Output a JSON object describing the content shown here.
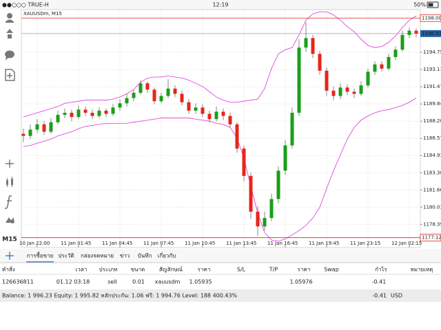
{
  "status_bar": {
    "carrier": "●●○○○ TRUE-H",
    "time": "12:19",
    "battery": "50%"
  },
  "chart_data": {
    "type": "candlestick",
    "title": "XAUUSDm, M15",
    "timeframe": "M15",
    "categories": [
      null,
      null,
      "10 Jan 22:00",
      null,
      null,
      null,
      null,
      null,
      "11 Jan 01:45",
      null,
      null,
      null,
      null,
      null,
      "11 Jan 04:45",
      null,
      null,
      null,
      null,
      null,
      "11 Jan 07:45",
      null,
      null,
      null,
      null,
      null,
      "11 Jan 10:45",
      null,
      null,
      null,
      null,
      null,
      "11 Jan 13:45",
      null,
      null,
      null,
      null,
      null,
      "11 Jan 16:45",
      null,
      null,
      null,
      null,
      null,
      "11 Jan 19:45",
      null,
      null,
      null,
      null,
      null,
      "11 Jan 23:15",
      null,
      null,
      null,
      null,
      null,
      "12 Jan 02:15",
      null
    ],
    "open": [
      1187.0,
      1186.8,
      1187.4,
      1187.9,
      1187.2,
      1188.1,
      1188.8,
      1189.0,
      1188.6,
      1189.3,
      1189.0,
      1188.7,
      1189.2,
      1188.9,
      1189.5,
      1189.9,
      1190.4,
      1190.9,
      1191.8,
      1191.2,
      1190.1,
      1190.6,
      1191.3,
      1190.8,
      1190.0,
      1189.2,
      1189.5,
      1188.9,
      1188.4,
      1189.1,
      1188.7,
      1187.9,
      1185.6,
      1183.0,
      1179.6,
      1178.2,
      1179.0,
      1180.8,
      1183.5,
      1185.9,
      1189.0,
      1195.2,
      1196.1,
      1194.6,
      1193.0,
      1191.1,
      1190.6,
      1191.4,
      1191.0,
      1190.8,
      1191.6,
      1192.9,
      1193.6,
      1193.2,
      1194.3,
      1195.0,
      1196.4,
      1196.8
    ],
    "high": [
      1187.5,
      1187.9,
      1188.4,
      1188.2,
      1188.5,
      1189.2,
      1189.4,
      1189.3,
      1189.7,
      1189.6,
      1189.3,
      1189.5,
      1189.4,
      1189.8,
      1190.3,
      1190.8,
      1191.2,
      1192.1,
      1192.0,
      1191.4,
      1190.9,
      1192.2,
      1191.6,
      1191.1,
      1190.3,
      1189.9,
      1189.8,
      1189.2,
      1189.6,
      1189.4,
      1189.0,
      1188.1,
      1185.9,
      1183.3,
      1180.1,
      1179.6,
      1181.3,
      1183.9,
      1186.4,
      1189.5,
      1196.0,
      1197.6,
      1196.4,
      1194.9,
      1193.3,
      1191.5,
      1191.8,
      1191.7,
      1191.3,
      1192.0,
      1193.2,
      1193.9,
      1193.9,
      1194.6,
      1195.3,
      1196.8,
      1197.1,
      1197.0
    ],
    "low": [
      1186.2,
      1186.5,
      1187.1,
      1186.9,
      1187.0,
      1187.9,
      1188.5,
      1188.2,
      1188.4,
      1188.7,
      1188.4,
      1188.5,
      1188.6,
      1188.7,
      1189.2,
      1189.6,
      1190.1,
      1190.7,
      1190.9,
      1189.8,
      1189.9,
      1190.4,
      1190.5,
      1189.7,
      1188.9,
      1188.9,
      1188.6,
      1188.1,
      1188.2,
      1188.3,
      1187.6,
      1185.2,
      1182.5,
      1178.9,
      1177.3,
      1177.8,
      1178.7,
      1180.4,
      1183.1,
      1185.6,
      1188.7,
      1194.8,
      1194.2,
      1192.6,
      1190.6,
      1190.2,
      1190.3,
      1190.7,
      1190.4,
      1190.6,
      1191.4,
      1192.6,
      1192.9,
      1193.0,
      1194.0,
      1194.8,
      1196.1,
      1196.2
    ],
    "close": [
      1186.8,
      1187.4,
      1187.9,
      1187.2,
      1188.1,
      1188.8,
      1189.0,
      1188.6,
      1189.3,
      1189.0,
      1188.7,
      1189.2,
      1188.9,
      1189.5,
      1189.9,
      1190.4,
      1190.9,
      1191.8,
      1191.2,
      1190.1,
      1190.6,
      1191.3,
      1190.8,
      1190.0,
      1189.2,
      1189.5,
      1188.9,
      1188.4,
      1189.1,
      1188.7,
      1187.9,
      1185.6,
      1183.0,
      1179.6,
      1178.2,
      1179.0,
      1180.8,
      1183.5,
      1185.9,
      1189.0,
      1195.2,
      1196.1,
      1194.6,
      1193.0,
      1191.1,
      1190.6,
      1191.4,
      1191.0,
      1190.8,
      1191.6,
      1192.9,
      1193.6,
      1193.2,
      1194.3,
      1195.0,
      1196.4,
      1196.8,
      1196.53
    ],
    "up_color": "#1a9e1a",
    "down_color": "#e8251a",
    "bands": {
      "color": "#d633d6",
      "upper": [
        1188.6,
        1188.8,
        1189.0,
        1189.2,
        1189.4,
        1189.6,
        1189.9,
        1190.0,
        1190.1,
        1190.2,
        1190.2,
        1190.2,
        1190.2,
        1190.3,
        1190.5,
        1190.8,
        1191.2,
        1191.9,
        1192.3,
        1192.4,
        1192.4,
        1192.5,
        1192.4,
        1192.3,
        1192.1,
        1191.8,
        1191.5,
        1191.0,
        1190.5,
        1190.2,
        1190.0,
        1190.0,
        1190.1,
        1190.2,
        1190.3,
        1191.3,
        1193.2,
        1194.6,
        1195.0,
        1195.2,
        1196.4,
        1197.8,
        1198.4,
        1198.6,
        1198.6,
        1198.3,
        1197.8,
        1197.2,
        1196.7,
        1196.0,
        1195.4,
        1195.2,
        1195.3,
        1195.7,
        1196.3,
        1197.1,
        1197.8,
        1198.2
      ],
      "lower": [
        1185.8,
        1185.9,
        1186.1,
        1186.3,
        1186.5,
        1186.8,
        1187.0,
        1187.2,
        1187.5,
        1187.7,
        1187.8,
        1187.9,
        1188.0,
        1188.0,
        1188.0,
        1188.0,
        1188.1,
        1188.2,
        1188.3,
        1188.4,
        1188.5,
        1188.5,
        1188.5,
        1188.5,
        1188.5,
        1188.4,
        1188.3,
        1188.2,
        1188.0,
        1187.9,
        1187.6,
        1186.6,
        1184.7,
        1182.0,
        1179.5,
        1177.6,
        1176.9,
        1176.8,
        1177.0,
        1177.4,
        1177.8,
        1178.3,
        1179.0,
        1180.0,
        1181.8,
        1183.5,
        1185.0,
        1186.5,
        1187.6,
        1188.3,
        1188.7,
        1189.0,
        1189.2,
        1189.3,
        1189.5,
        1189.7,
        1190.0,
        1190.4
      ]
    },
    "ylim": [
      1176.52,
      1198.74
    ],
    "yticks": [
      1178.395,
      {
        "value": 1180.03,
        "label": "1180.030"
      },
      1181.665,
      {
        "value": 1183.3,
        "label": "1183.300"
      },
      1184.935,
      {
        "value": 1186.57,
        "label": "1186.570"
      },
      1188.205,
      {
        "value": 1189.84,
        "label": "1189.840"
      },
      1191.475,
      {
        "value": 1193.11,
        "label": "1193.110"
      },
      1194.755
    ],
    "grid": true,
    "current_price": {
      "value": 1196.53,
      "label": "1196.530"
    },
    "high_line": 1198.003,
    "low_line": 1177.127
  },
  "tabs": [
    "การซื้อขาย",
    "ประวัติ",
    "กล่องจดหมาย",
    "ข่าว",
    "บันทึก",
    "เกี่ยวกับ"
  ],
  "table": {
    "headers": [
      "คำสั่ง",
      "เวลา",
      "ประเภท",
      "ขนาด",
      "สัญลักษณ์",
      "ราคา",
      "S/L",
      "T/P",
      "ราคา",
      "Swap",
      "กำไร",
      "หมายเหตุ"
    ],
    "rows": [
      {
        "order": "126636811",
        "time": "01.12 03:18",
        "type": "sell",
        "size": "0.01",
        "symbol": "xauusdm",
        "price": "1.05935",
        "current_price": "1.05976",
        "profit": "-0.41"
      }
    ]
  },
  "footer": {
    "summary": "Balance: 1 996.23 Equity: 1 995.82 หลักประกัน: 1.06 ฟรี: 1 994.76 Level: 188 400.43%",
    "profit": "-0.41",
    "currency": "USD"
  }
}
